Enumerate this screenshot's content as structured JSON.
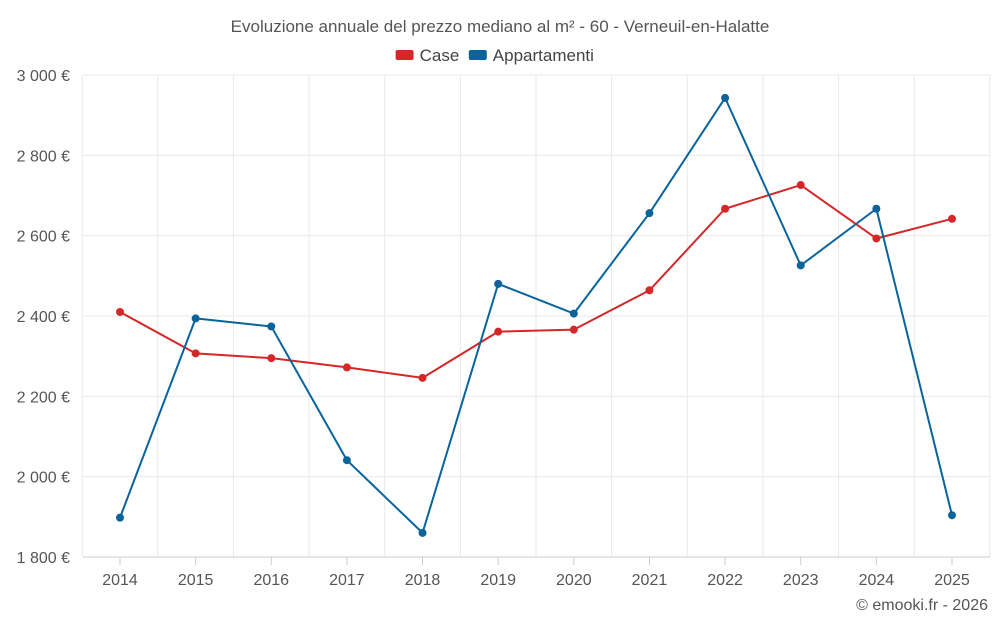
{
  "chart_data": {
    "type": "line",
    "title": "Evoluzione annuale del prezzo mediano al m² - 60 - Verneuil-en-Halatte",
    "categories": [
      "2014",
      "2015",
      "2016",
      "2017",
      "2018",
      "2019",
      "2020",
      "2021",
      "2022",
      "2023",
      "2024",
      "2025"
    ],
    "series": [
      {
        "name": "Case",
        "color": "#d62728",
        "values": [
          2410,
          2307,
          2295,
          2272,
          2246,
          2361,
          2366,
          2464,
          2667,
          2726,
          2593,
          2642
        ]
      },
      {
        "name": "Appartamenti",
        "color": "#08649b",
        "values": [
          1898,
          2394,
          2374,
          2041,
          1860,
          2480,
          2406,
          2656,
          2943,
          2526,
          2667,
          1904
        ]
      }
    ],
    "y_ticks": [
      1800,
      2000,
      2200,
      2400,
      2600,
      2800,
      3000
    ],
    "y_tick_labels": [
      "1 800 €",
      "2 000 €",
      "2 200 €",
      "2 400 €",
      "2 600 €",
      "2 800 €",
      "3 000 €"
    ],
    "ylim": [
      1800,
      3000
    ],
    "xlabel": "",
    "ylabel": "",
    "legend_position": "top-center",
    "credit": "© emooki.fr - 2026"
  }
}
